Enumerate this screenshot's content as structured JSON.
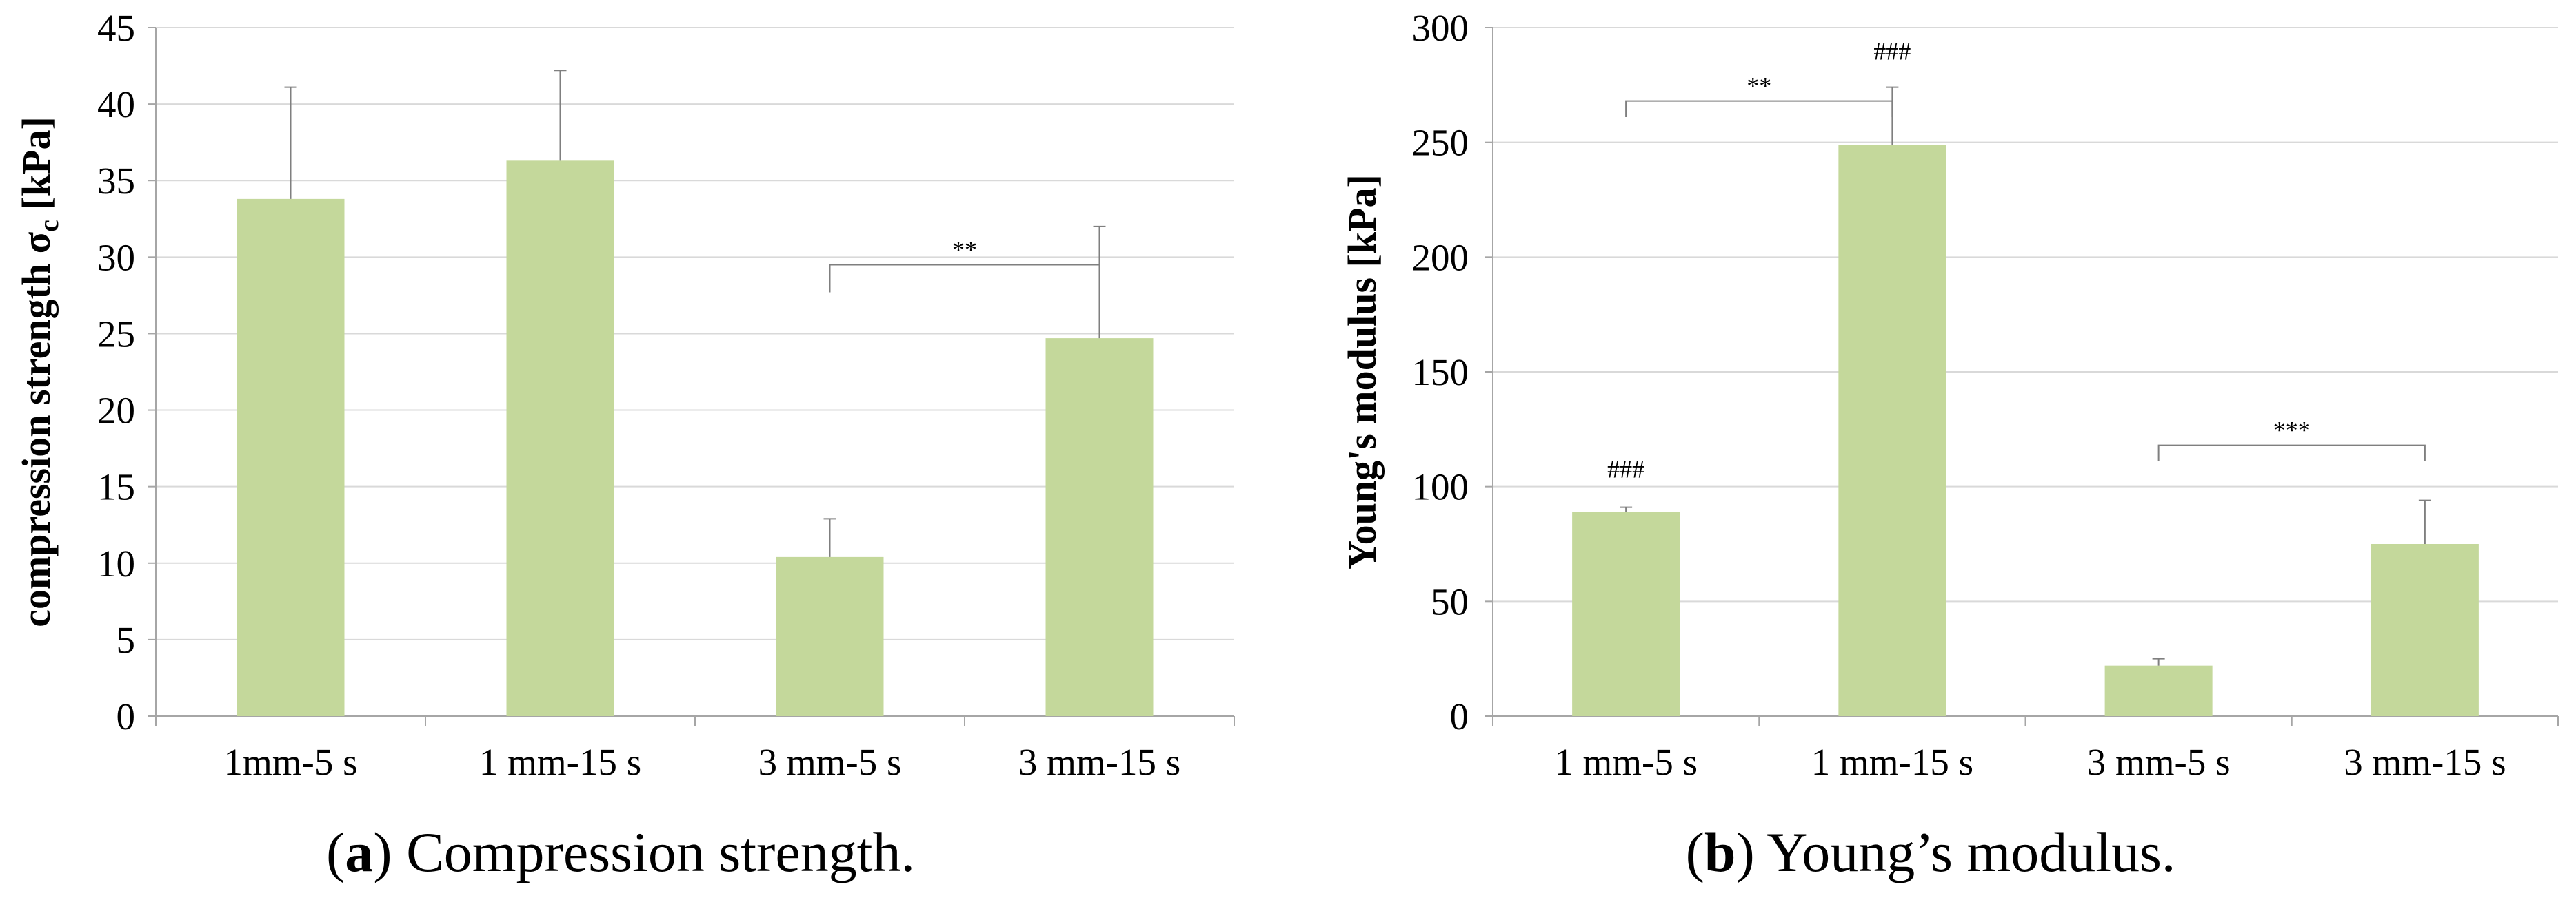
{
  "chart_data": [
    {
      "type": "bar",
      "panel": "a",
      "categories": [
        "1mm-5 s",
        "1 mm-15 s",
        "3 mm-5 s",
        "3 mm-15 s"
      ],
      "values": [
        33.8,
        36.3,
        10.4,
        24.7
      ],
      "errors": [
        7.3,
        5.9,
        2.5,
        7.3
      ],
      "ylabel_main": "compression strength σ",
      "ylabel_sub": "c",
      "ylabel_unit": " [kPa]",
      "ylim": [
        0,
        45
      ],
      "yticks": [
        0,
        5,
        10,
        15,
        20,
        25,
        30,
        35,
        40,
        45
      ],
      "grid": true,
      "bar_color": "#c4d89b",
      "annotations": [
        {
          "type": "bracket",
          "from": 2,
          "to": 3,
          "level": 29.5,
          "drop": 1.8,
          "label": "**"
        }
      ],
      "caption_letter": "a",
      "caption_text": " Compression strength."
    },
    {
      "type": "bar",
      "panel": "b",
      "categories": [
        "1 mm-5 s",
        "1 mm-15 s",
        "3 mm-5 s",
        "3 mm-15 s"
      ],
      "values": [
        89,
        249,
        22,
        75
      ],
      "errors": [
        2,
        25,
        3,
        19
      ],
      "ylabel_main": "Young's modulus [kPa]",
      "ylabel_sub": "",
      "ylabel_unit": "",
      "ylim": [
        0,
        300
      ],
      "yticks": [
        0,
        50,
        100,
        150,
        200,
        250,
        300
      ],
      "grid": true,
      "bar_color": "#c4d89b",
      "annotations": [
        {
          "type": "bracket",
          "from": 0,
          "to": 1,
          "level": 268,
          "drop": 7,
          "label": "**"
        },
        {
          "type": "bracket",
          "from": 2,
          "to": 3,
          "level": 118,
          "drop": 7,
          "label": "***"
        },
        {
          "type": "text",
          "at": 0,
          "value": 104,
          "label": "###"
        },
        {
          "type": "text",
          "at": 1,
          "value": 286,
          "label": "###"
        }
      ],
      "caption_letter": "b",
      "caption_text": " Young’s modulus."
    }
  ]
}
